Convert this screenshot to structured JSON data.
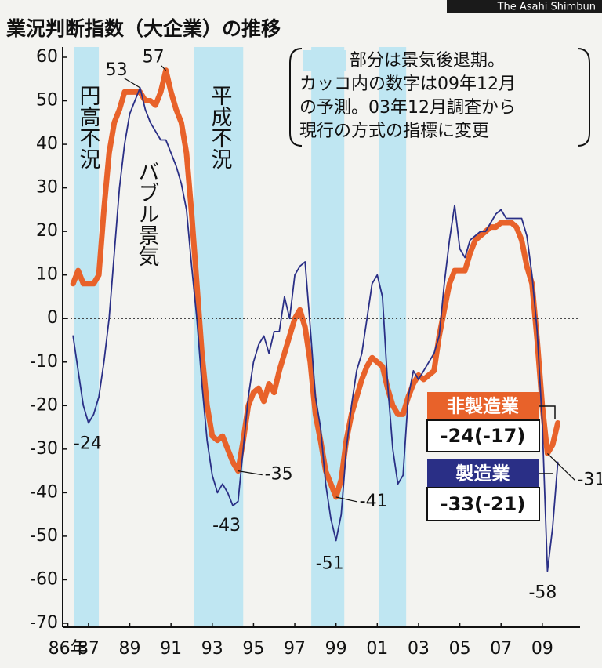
{
  "chart_data": {
    "type": "line",
    "title": "業況判断指数（大企業）の推移",
    "credit": "The Asahi Shimbun",
    "note": [
      "部分は景気後退期。",
      "カッコ内の数字は09年12月",
      "の予測。03年12月調査から",
      "現行の方式の指標に変更"
    ],
    "shaded_periods": [
      [
        1986.3,
        1987.5
      ],
      [
        1992.1,
        1994.5
      ],
      [
        1997.8,
        1999.4
      ],
      [
        2001.1,
        2002.4
      ]
    ],
    "shaded_color": "#bfe6f2",
    "period_labels": [
      "円高不況",
      "バブル景気",
      "平成不況"
    ],
    "x": [
      1986.25,
      1986.5,
      1986.75,
      1987,
      1987.25,
      1987.5,
      1987.75,
      1988,
      1988.25,
      1988.5,
      1988.75,
      1989,
      1989.25,
      1989.5,
      1989.75,
      1990,
      1990.25,
      1990.5,
      1990.75,
      1991,
      1991.25,
      1991.5,
      1991.75,
      1992,
      1992.25,
      1992.5,
      1992.75,
      1993,
      1993.25,
      1993.5,
      1993.75,
      1994,
      1994.25,
      1994.5,
      1994.75,
      1995,
      1995.25,
      1995.5,
      1995.75,
      1996,
      1996.25,
      1996.5,
      1996.75,
      1997,
      1997.25,
      1997.5,
      1997.75,
      1998,
      1998.25,
      1998.5,
      1998.75,
      1999,
      1999.25,
      1999.5,
      1999.75,
      2000,
      2000.25,
      2000.5,
      2000.75,
      2001,
      2001.25,
      2001.5,
      2001.75,
      2002,
      2002.25,
      2002.5,
      2002.75,
      2003,
      2003.25,
      2003.5,
      2003.75,
      2004,
      2004.25,
      2004.5,
      2004.75,
      2005,
      2005.25,
      2005.5,
      2005.75,
      2006,
      2006.25,
      2006.5,
      2006.75,
      2007,
      2007.25,
      2007.5,
      2007.75,
      2008,
      2008.25,
      2008.5,
      2008.75,
      2009,
      2009.25,
      2009.5,
      2009.75
    ],
    "series": [
      {
        "name": "製造業",
        "color": "#2a2f86",
        "summary": "-33(-21)",
        "values": [
          -4,
          -12,
          -20,
          -24,
          -22,
          -18,
          -10,
          0,
          15,
          30,
          40,
          47,
          50,
          53,
          48,
          45,
          43,
          41,
          41,
          38,
          35,
          31,
          25,
          12,
          0,
          -15,
          -28,
          -36,
          -40,
          -38,
          -40,
          -43,
          -42,
          -30,
          -18,
          -10,
          -6,
          -4,
          -8,
          -3,
          -3,
          5,
          0,
          10,
          12,
          13,
          -2,
          -18,
          -25,
          -38,
          -46,
          -51,
          -45,
          -30,
          -20,
          -12,
          -8,
          0,
          8,
          10,
          5,
          -15,
          -30,
          -38,
          -36,
          -18,
          -12,
          -14,
          -12,
          -10,
          -8,
          -4,
          8,
          18,
          26,
          16,
          14,
          18,
          19,
          20,
          20,
          22,
          24,
          25,
          23,
          23,
          23,
          23,
          19,
          10,
          -3,
          -24,
          -58,
          -48,
          -33
        ]
      },
      {
        "name": "非製造業",
        "color": "#e8622a",
        "summary": "-24(-17)",
        "values": [
          8,
          11,
          8,
          8,
          8,
          10,
          25,
          38,
          45,
          48,
          52,
          52,
          52,
          52,
          50,
          50,
          49,
          52,
          57,
          52,
          48,
          45,
          38,
          24,
          8,
          -8,
          -20,
          -27,
          -28,
          -27,
          -30,
          -33,
          -35,
          -28,
          -20,
          -17,
          -16,
          -19,
          -15,
          -17,
          -12,
          -8,
          -4,
          0,
          2,
          -2,
          -10,
          -22,
          -28,
          -35,
          -38,
          -41,
          -37,
          -28,
          -22,
          -18,
          -14,
          -11,
          -9,
          -10,
          -11,
          -16,
          -20,
          -22,
          -22,
          -18,
          -15,
          -13,
          -14,
          -13,
          -12,
          -4,
          2,
          8,
          11,
          11,
          11,
          15,
          18,
          19,
          20,
          21,
          21,
          22,
          22,
          22,
          21,
          18,
          12,
          8,
          -5,
          -20,
          -31,
          -29,
          -24
        ]
      }
    ],
    "xlim": [
      1985.75,
      2010.45
    ],
    "xticks": [
      {
        "value": 1986,
        "label": "86年"
      },
      {
        "value": 1987,
        "label": "87"
      },
      {
        "value": 1989,
        "label": "89"
      },
      {
        "value": 1991,
        "label": "91"
      },
      {
        "value": 1993,
        "label": "93"
      },
      {
        "value": 1995,
        "label": "95"
      },
      {
        "value": 1997,
        "label": "97"
      },
      {
        "value": 1999,
        "label": "99"
      },
      {
        "value": 2001,
        "label": "01"
      },
      {
        "value": 2003,
        "label": "03"
      },
      {
        "value": 2005,
        "label": "05"
      },
      {
        "value": 2007,
        "label": "07"
      },
      {
        "value": 2009,
        "label": "09"
      }
    ],
    "ylim": [
      -70,
      60
    ],
    "yticks": [
      60,
      50,
      40,
      30,
      20,
      10,
      0,
      -10,
      -20,
      -30,
      -40,
      -50,
      -60,
      -70
    ],
    "grid": false
  }
}
